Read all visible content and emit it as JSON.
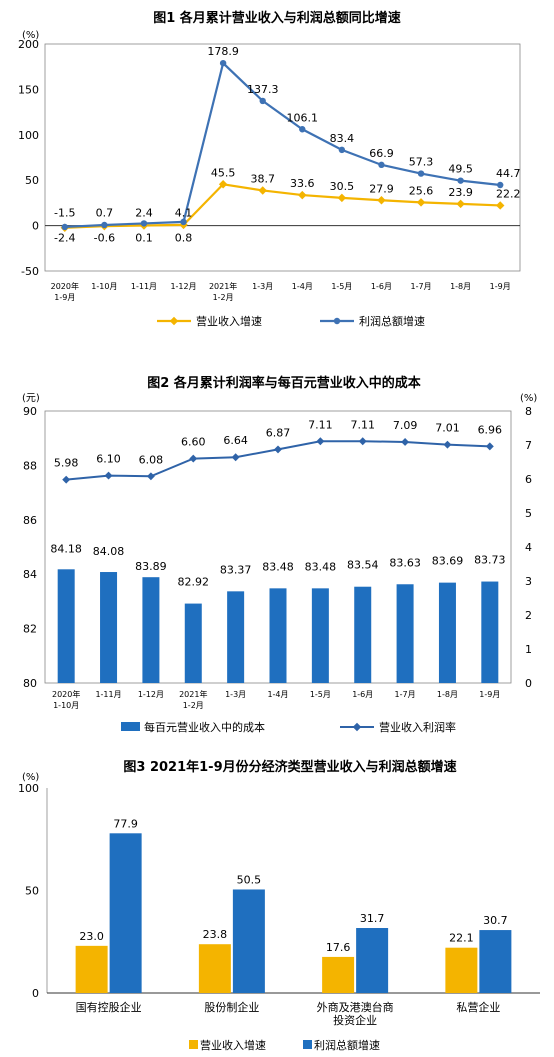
{
  "chart_data": [
    {
      "type": "line",
      "title": "图1  各月累计营业收入与利润总额同比增速",
      "unit": "(%)",
      "categories": [
        [
          "2020年",
          "1-9月"
        ],
        [
          "1-10月"
        ],
        [
          "1-11月"
        ],
        [
          "1-12月"
        ],
        [
          "2021年",
          "1-2月"
        ],
        [
          "1-3月"
        ],
        [
          "1-4月"
        ],
        [
          "1-5月"
        ],
        [
          "1-6月"
        ],
        [
          "1-7月"
        ],
        [
          "1-8月"
        ],
        [
          "1-9月"
        ]
      ],
      "ylim": [
        -50,
        200
      ],
      "yticks": [
        "-50",
        "0",
        "50",
        "100",
        "150",
        "200"
      ],
      "series": [
        {
          "name": "营业收入增速",
          "color": "#F4B400",
          "values": [
            -2.4,
            -0.6,
            0.1,
            0.8,
            45.5,
            38.7,
            33.6,
            30.5,
            27.9,
            25.6,
            23.9,
            22.2
          ],
          "labels": [
            "-2.4",
            "-0.6",
            "0.1",
            "0.8",
            "45.5",
            "38.7",
            "33.6",
            "30.5",
            "27.9",
            "25.6",
            "23.9",
            "22.2"
          ]
        },
        {
          "name": "利润总额增速",
          "color": "#3E72B4",
          "values": [
            -1.5,
            0.7,
            2.4,
            4.1,
            178.9,
            137.3,
            106.1,
            83.4,
            66.9,
            57.3,
            49.5,
            44.7
          ],
          "labels": [
            "-1.5",
            "0.7",
            "2.4",
            "4.1",
            "178.9",
            "137.3",
            "106.1",
            "83.4",
            "66.9",
            "57.3",
            "49.5",
            "44.7"
          ]
        }
      ]
    },
    {
      "type": "bar",
      "title": "图2  各月累计利润率与每百元营业收入中的成本",
      "unit_left": "(元)",
      "unit_right": "(%)",
      "categories": [
        [
          "2020年",
          "1-10月"
        ],
        [
          "1-11月"
        ],
        [
          "1-12月"
        ],
        [
          "2021年",
          "1-2月"
        ],
        [
          "1-3月"
        ],
        [
          "1-4月"
        ],
        [
          "1-5月"
        ],
        [
          "1-6月"
        ],
        [
          "1-7月"
        ],
        [
          "1-8月"
        ],
        [
          "1-9月"
        ]
      ],
      "ylim_left": [
        80,
        90
      ],
      "yticks_left": [
        "80",
        "82",
        "84",
        "86",
        "88",
        "90"
      ],
      "ylim_right": [
        0,
        8
      ],
      "yticks_right": [
        "0",
        "1",
        "2",
        "3",
        "4",
        "5",
        "6",
        "7",
        "8"
      ],
      "series": [
        {
          "name": "每百元营业收入中的成本",
          "kind": "bar",
          "axis": "left",
          "color": "#1F6FBF",
          "values": [
            84.18,
            84.08,
            83.89,
            82.92,
            83.37,
            83.48,
            83.48,
            83.54,
            83.63,
            83.69,
            83.73
          ],
          "labels": [
            "84.18",
            "84.08",
            "83.89",
            "82.92",
            "83.37",
            "83.48",
            "83.48",
            "83.54",
            "83.63",
            "83.69",
            "83.73"
          ]
        },
        {
          "name": "营业收入利润率",
          "kind": "line",
          "axis": "right",
          "color": "#2F63A8",
          "values": [
            5.98,
            6.1,
            6.08,
            6.6,
            6.64,
            6.87,
            7.11,
            7.11,
            7.09,
            7.01,
            6.96
          ],
          "labels": [
            "5.98",
            "6.10",
            "6.08",
            "6.60",
            "6.64",
            "6.87",
            "7.11",
            "7.11",
            "7.09",
            "7.01",
            "6.96"
          ]
        }
      ]
    },
    {
      "type": "bar",
      "title": "图3  2021年1-9月份分经济类型营业收入与利润总额增速",
      "unit": "(%)",
      "categories": [
        [
          "国有控股企业"
        ],
        [
          "股份制企业"
        ],
        [
          "外商及港澳台商",
          "投资企业"
        ],
        [
          "私营企业"
        ]
      ],
      "ylim": [
        0,
        100
      ],
      "yticks": [
        "0",
        "50",
        "100"
      ],
      "series": [
        {
          "name": "营业收入增速",
          "color": "#F4B400",
          "values": [
            23.0,
            23.8,
            17.6,
            22.1
          ],
          "labels": [
            "23.0",
            "23.8",
            "17.6",
            "22.1"
          ]
        },
        {
          "name": "利润总额增速",
          "color": "#1F6FBF",
          "values": [
            77.9,
            50.5,
            31.7,
            30.7
          ],
          "labels": [
            "77.9",
            "50.5",
            "31.7",
            "30.7"
          ]
        }
      ]
    }
  ]
}
